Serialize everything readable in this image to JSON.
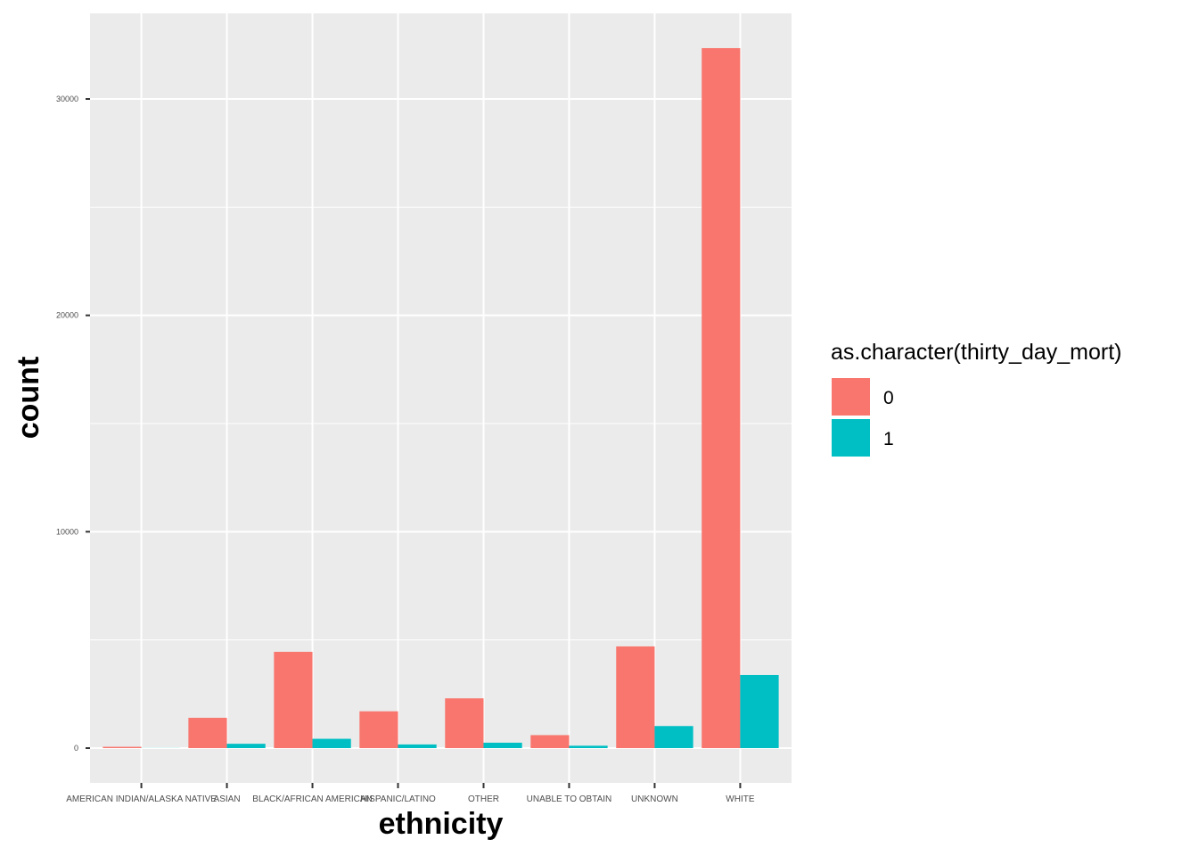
{
  "chart_data": {
    "type": "bar",
    "xlabel": "ethnicity",
    "ylabel": "count",
    "ylim": [
      -1500,
      33500
    ],
    "y_ticks": [
      0,
      10000,
      20000,
      30000
    ],
    "y_tick_labels": [
      "0",
      "10000",
      "20000",
      "30000"
    ],
    "categories": [
      "AMERICAN INDIAN/ALASKA NATIVE",
      "ASIAN",
      "BLACK/AFRICAN AMERICAN",
      "HISPANIC/LATINO",
      "OTHER",
      "UNABLE TO OBTAIN",
      "UNKNOWN",
      "WHITE"
    ],
    "series": [
      {
        "name": "0",
        "values": [
          60,
          1400,
          4450,
          1700,
          2300,
          600,
          4700,
          32350
        ]
      },
      {
        "name": "1",
        "values": [
          5,
          200,
          430,
          170,
          250,
          110,
          1020,
          3380
        ]
      }
    ],
    "legend": {
      "title": "as.character(thirty_day_mort)",
      "position": "right"
    },
    "grid": true,
    "colors": {
      "series0": "#F8766D",
      "series1": "#00BFC4",
      "panel": "#EBEBEB",
      "grid": "#FFFFFF"
    }
  }
}
